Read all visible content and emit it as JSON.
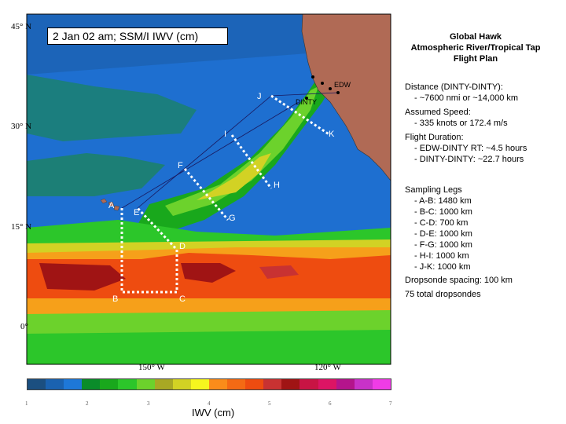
{
  "map": {
    "title": "2 Jan 02 am; SSM/I IWV (cm)",
    "lat_labels": [
      "45° N",
      "30° N",
      "15° N",
      "0°"
    ],
    "lon_labels": [
      "150° W",
      "120° W"
    ],
    "waypoints": [
      "A",
      "B",
      "C",
      "D",
      "E",
      "F",
      "G",
      "H",
      "I",
      "J",
      "K"
    ],
    "place_labels": [
      "EDW",
      "DINTY"
    ],
    "colors": {
      "ocean_background": "#1e6fd0",
      "land": "#b06a55",
      "flight_path": "#ffffff",
      "transit_line": "#1a1a60"
    }
  },
  "header": {
    "title_lines": [
      "Global Hawk",
      "Atmospheric River/Tropical Tap",
      "Flight Plan"
    ]
  },
  "info": {
    "distance_label": "Distance (DINTY-DINTY):",
    "distance_value": "- ~7600 nmi or ~14,000 km",
    "speed_label": "Assumed Speed:",
    "speed_value": "- 335 knots or 172.4 m/s",
    "duration_label": "Flight Duration:",
    "duration_rt": "- EDW-DINTY RT:  ~4.5 hours",
    "duration_dd": "- DINTY-DINTY:  ~22.7 hours",
    "legs_label": "Sampling Legs",
    "legs": [
      "- A-B:  1480 km",
      "- B-C:  1000 km",
      "- C-D:  700 km",
      "- D-E:  1000 km",
      "- F-G:  1000 km",
      "- H-I:  1000 km",
      "- J-K:  1000 km"
    ],
    "dropsonde_spacing": "Dropsonde spacing: 100 km",
    "dropsonde_total": "75 total dropsondes"
  },
  "colorbar": {
    "label": "IWV (cm)",
    "ticks": [
      "1",
      "2",
      "3",
      "4",
      "5",
      "6",
      "7"
    ],
    "colors": [
      "#1b4f80",
      "#1a62b0",
      "#1e78d8",
      "#0a8c2a",
      "#19a81c",
      "#2cc62a",
      "#6cd22c",
      "#a8a824",
      "#d2d224",
      "#f6f61e",
      "#fa8c1a",
      "#f46a14",
      "#ee4c10",
      "#c83232",
      "#a01414",
      "#c81444",
      "#dc1464",
      "#b4148c",
      "#c832c8",
      "#f03ce6"
    ]
  }
}
